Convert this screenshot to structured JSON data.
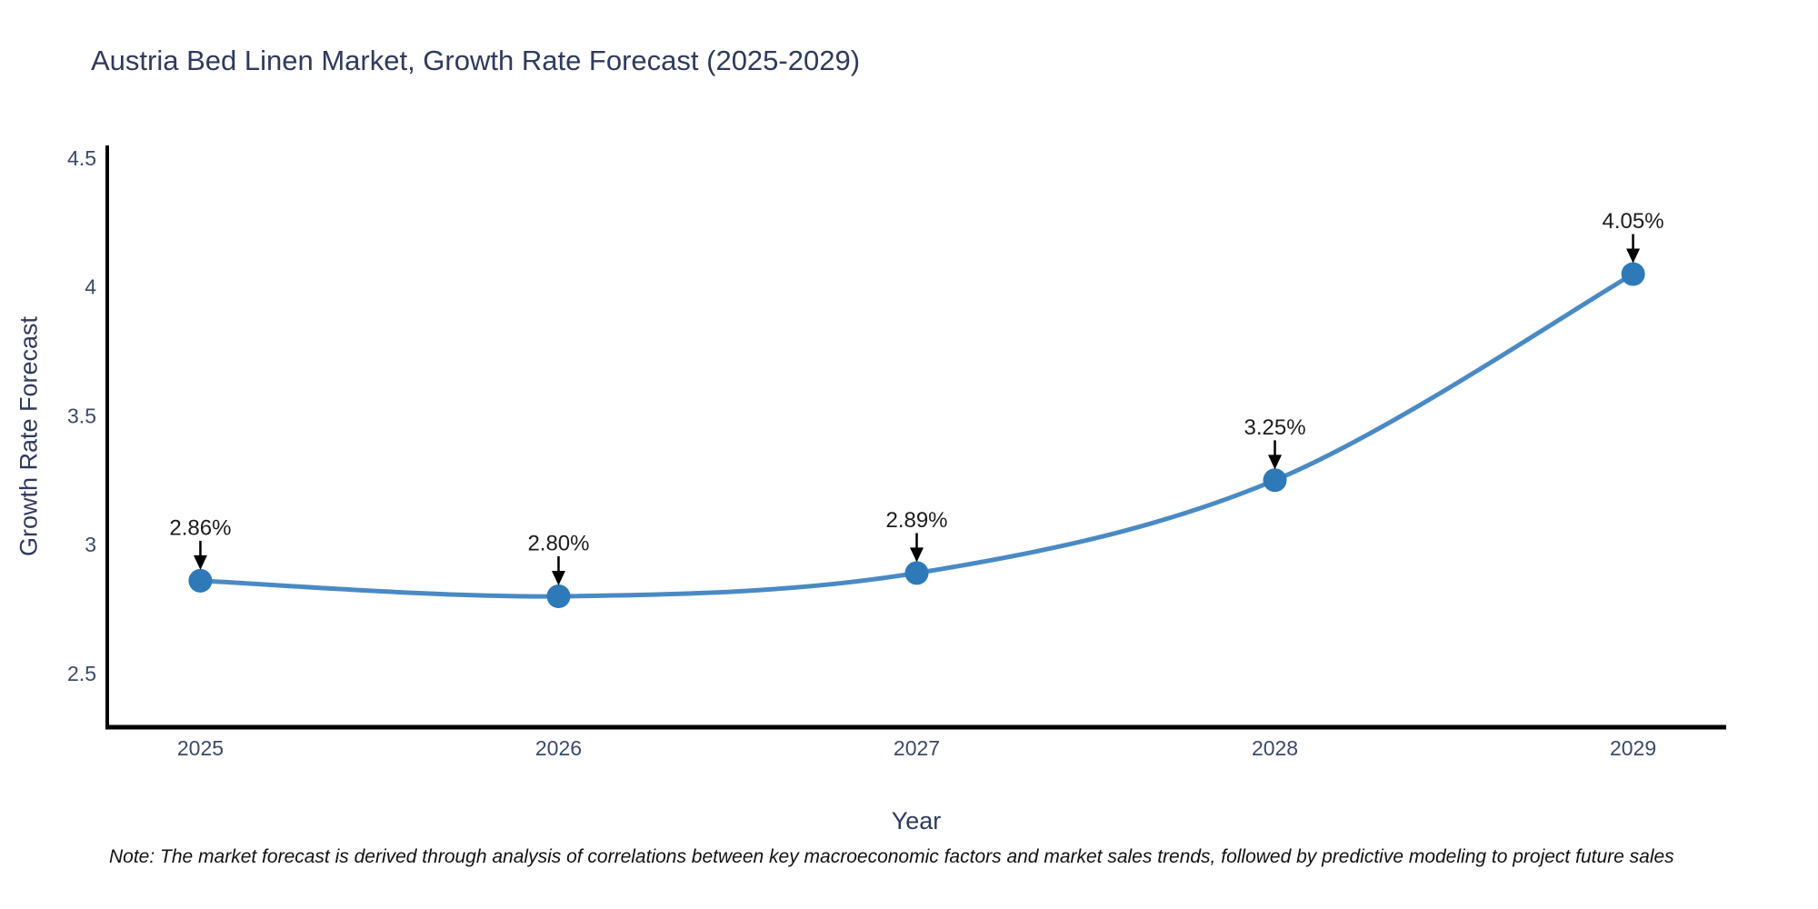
{
  "chart_data": {
    "type": "line",
    "title": "Austria Bed Linen Market, Growth Rate Forecast (2025-2029)",
    "xlabel": "Year",
    "ylabel": "Growth Rate Forecast",
    "x": [
      2025,
      2026,
      2027,
      2028,
      2029
    ],
    "series": [
      {
        "name": "Growth Rate Forecast",
        "values": [
          2.86,
          2.8,
          2.89,
          3.25,
          4.05
        ]
      }
    ],
    "point_labels": [
      "2.86%",
      "2.80%",
      "2.89%",
      "3.25%",
      "4.05%"
    ],
    "xticks": [
      "2025",
      "2026",
      "2027",
      "2028",
      "2029"
    ],
    "yticks": [
      "2.5",
      "3",
      "3.5",
      "4",
      "4.5"
    ],
    "ytick_values": [
      2.5,
      3,
      3.5,
      4,
      4.5
    ],
    "xlim": [
      2024.74,
      2029.26
    ],
    "ylim": [
      2.292,
      4.549
    ],
    "grid": false,
    "legend": "none",
    "line_shape": "spline",
    "colors": {
      "line": "#4a8ac4",
      "marker": "#2e79b8",
      "axis": "#000000",
      "title_text": "#2f3a5c",
      "tick_text": "#3b4a68",
      "annotation_text": "#1d1d1d",
      "arrow": "#000000",
      "background": "#ffffff"
    }
  },
  "note": "Note: The market forecast is derived through analysis of correlations between key macroeconomic factors and market sales trends, followed by predictive modeling to project future sales"
}
